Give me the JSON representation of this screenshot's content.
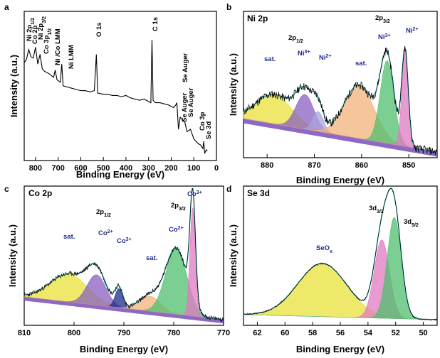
{
  "colors": {
    "yellow": "#e8e23a",
    "purple": "#8a5fc0",
    "lavender": "#a9a3dc",
    "orange": "#f2b27a",
    "green": "#4fbf6e",
    "pink": "#e07ac0",
    "navy": "#1f2a8a",
    "envelope": "#19a7a0",
    "raw": "#000000",
    "baseline_a": "#7a4fb8",
    "baseline_b": "#e8e23a"
  },
  "chart_data": [
    {
      "id": "a",
      "panel_label": "a",
      "type": "line",
      "title": "",
      "xlabel": "Binding Energy (eV)",
      "ylabel": "Intensity (a.u.)",
      "xlim": [
        850,
        0
      ],
      "xticks": [
        "800",
        "700",
        "600",
        "500",
        "400",
        "300",
        "200",
        "100",
        "0"
      ],
      "x_reversed": true,
      "annotations": [
        "Ni 2p1/2",
        "Co 2p",
        "Ni 2p3/2",
        "Co 3p1/2",
        "Ni /Co LMM",
        "Ni LMM",
        "O 1s",
        "C 1s",
        "Se Auger",
        "Se Auger",
        "Se Auger",
        "Co 3p",
        "Se 3d"
      ],
      "series": [
        {
          "values": [
            [
              850,
              0.75
            ],
            [
              840,
              0.78
            ],
            [
              830,
              0.86
            ],
            [
              820,
              0.8
            ],
            [
              810,
              0.79
            ],
            [
              800,
              0.88
            ],
            [
              790,
              0.74
            ],
            [
              780,
              0.82
            ],
            [
              770,
              0.7
            ],
            [
              760,
              0.68
            ],
            [
              740,
              0.66
            ],
            [
              720,
              0.63
            ],
            [
              713,
              0.69
            ],
            [
              705,
              0.61
            ],
            [
              690,
              0.59
            ],
            [
              684,
              0.74
            ],
            [
              678,
              0.56
            ],
            [
              660,
              0.55
            ],
            [
              640,
              0.54
            ],
            [
              620,
              0.53
            ],
            [
              600,
              0.52
            ],
            [
              580,
              0.52
            ],
            [
              560,
              0.51
            ],
            [
              540,
              0.52
            ],
            [
              531,
              0.82
            ],
            [
              525,
              0.5
            ],
            [
              500,
              0.49
            ],
            [
              480,
              0.49
            ],
            [
              460,
              0.48
            ],
            [
              440,
              0.48
            ],
            [
              420,
              0.47
            ],
            [
              400,
              0.48
            ],
            [
              380,
              0.46
            ],
            [
              360,
              0.45
            ],
            [
              340,
              0.44
            ],
            [
              320,
              0.45
            ],
            [
              300,
              0.43
            ],
            [
              290,
              0.42
            ],
            [
              285,
              0.94
            ],
            [
              280,
              0.44
            ],
            [
              270,
              0.42
            ],
            [
              250,
              0.42
            ],
            [
              230,
              0.41
            ],
            [
              210,
              0.4
            ],
            [
              190,
              0.38
            ],
            [
              180,
              0.4
            ],
            [
              175,
              0.42
            ],
            [
              168,
              0.2
            ],
            [
              160,
              0.3
            ],
            [
              150,
              0.28
            ],
            [
              140,
              0.26
            ],
            [
              130,
              0.18
            ],
            [
              115,
              0.2
            ],
            [
              100,
              0.12
            ],
            [
              90,
              0.1
            ],
            [
              80,
              0.08
            ],
            [
              70,
              0.07
            ],
            [
              60,
              0.04
            ],
            [
              56,
              0.1
            ],
            [
              52,
              0.0
            ],
            [
              45,
              0.03
            ],
            [
              40,
              0.02
            ]
          ]
        }
      ]
    },
    {
      "id": "b",
      "panel_label": "b",
      "title": "Ni 2p",
      "type": "line",
      "xlabel": "Binding Energy (eV)",
      "ylabel": "Intensity (a.u.)",
      "xlim": [
        885,
        844
      ],
      "xticks": [
        "880",
        "870",
        "860",
        "850"
      ],
      "x_reversed": true,
      "annotations": [
        "2p1/2",
        "2p3/2",
        "sat.",
        "Ni3+",
        "Ni2+",
        "sat.",
        "Ni3+",
        "Ni2+"
      ],
      "series": [
        {
          "name": "sat. (880)",
          "color": "yellow",
          "center": 878.5,
          "height": 0.22,
          "fwhm": 9.0
        },
        {
          "name": "Ni3+ (2p1/2)",
          "color": "purple",
          "center": 872.0,
          "height": 0.26,
          "fwhm": 4.5
        },
        {
          "name": "Ni2+ (2p1/2)",
          "color": "lavender",
          "center": 869.2,
          "height": 0.15,
          "fwhm": 2.6
        },
        {
          "name": "sat. (861)",
          "color": "orange",
          "center": 860.5,
          "height": 0.4,
          "fwhm": 7.5
        },
        {
          "name": "Ni3+ (2p3/2)",
          "color": "green",
          "center": 854.6,
          "height": 0.62,
          "fwhm": 3.4
        },
        {
          "name": "Ni2+ (2p3/2)",
          "color": "pink",
          "center": 850.8,
          "height": 0.72,
          "fwhm": 1.6
        }
      ],
      "baseline": [
        [
          885,
          0.25
        ],
        [
          844,
          0.0
        ]
      ]
    },
    {
      "id": "c",
      "panel_label": "c",
      "title": "Co 2p",
      "type": "line",
      "xlabel": "Binding Energy (eV)",
      "ylabel": "Intensity (a.u.)",
      "xlim": [
        810,
        770
      ],
      "xticks": [
        "810",
        "800",
        "790",
        "780",
        "770"
      ],
      "x_reversed": true,
      "annotations": [
        "2p1/2",
        "2p3/2",
        "sat.",
        "Co2+",
        "Co3+",
        "sat.",
        "Co2+",
        "Co3+"
      ],
      "series": [
        {
          "name": "sat. (801)",
          "color": "yellow",
          "center": 801.0,
          "height": 0.22,
          "fwhm": 9.0
        },
        {
          "name": "Co2+ (2p1/2)",
          "color": "purple",
          "center": 795.5,
          "height": 0.24,
          "fwhm": 4.5
        },
        {
          "name": "Co3+ (2p1/2)",
          "color": "navy",
          "center": 791.0,
          "height": 0.15,
          "fwhm": 1.8
        },
        {
          "name": "sat. (785)",
          "color": "orange",
          "center": 784.8,
          "height": 0.12,
          "fwhm": 5.0
        },
        {
          "name": "Co2+ (2p3/2)",
          "color": "green",
          "center": 779.5,
          "height": 0.52,
          "fwhm": 5.0
        },
        {
          "name": "Co3+ (2p3/2)",
          "color": "pink",
          "center": 776.2,
          "height": 0.86,
          "fwhm": 1.3
        }
      ],
      "baseline": [
        [
          810,
          0.18
        ],
        [
          770,
          0.0
        ]
      ]
    },
    {
      "id": "d",
      "panel_label": "d",
      "title": "Se 3d",
      "type": "line",
      "xlabel": "Binding Energy (eV)",
      "ylabel": "Intensity (a.u.)",
      "xlim": [
        63,
        49
      ],
      "xticks": [
        "62",
        "60",
        "58",
        "56",
        "54",
        "52",
        "50"
      ],
      "x_reversed": true,
      "annotations": [
        "SeOx",
        "3d3/2",
        "3d5/2"
      ],
      "series": [
        {
          "name": "SeOx",
          "color": "yellow",
          "center": 57.3,
          "height": 0.42,
          "fwhm": 4.2
        },
        {
          "name": "3d3/2",
          "color": "pink",
          "center": 53.0,
          "height": 0.62,
          "fwhm": 1.3
        },
        {
          "name": "3d5/2",
          "color": "green",
          "center": 52.1,
          "height": 0.8,
          "fwhm": 1.2
        }
      ],
      "baseline": [
        [
          63,
          0.04
        ],
        [
          49,
          0.0
        ]
      ]
    }
  ],
  "panels": {
    "a": {
      "label": "a",
      "xlabel": "Binding Energy (eV)",
      "ylabel": "Intensity (a.u.)",
      "ticks": [
        "800",
        "700",
        "600",
        "500",
        "400",
        "300",
        "200",
        "100",
        "0"
      ],
      "ann": {
        "ni2p12": "Ni 2p",
        "ni2p12_sub": "1/2",
        "co2p": "Co 2p",
        "ni2p32": "Ni 2p",
        "ni2p32_sub": "3/2",
        "co3p12": "Co 3p",
        "co3p12_sub": "1/2",
        "nicolmm": "Ni /Co LMM",
        "nilmm": "Ni LMM",
        "o1s": "O 1s",
        "c1s": "C 1s",
        "seauger1": "Se Auger",
        "seauger2": "Se Auger",
        "seauger3": "Se Auger",
        "co3p": "Co 3p",
        "se3d": "Se 3d"
      }
    },
    "b": {
      "label": "b",
      "title": "Ni 2p",
      "xlabel": "Binding Energy (eV)",
      "ylabel": "Intensity (a.u.)",
      "ticks": [
        "880",
        "870",
        "860",
        "850"
      ],
      "ann": {
        "p12": "2p",
        "p12_sub": "1/2",
        "p32": "2p",
        "p32_sub": "3/2",
        "sat1": "sat.",
        "ni3a": "Ni",
        "ni3a_sup": "3+",
        "ni2a": "Ni",
        "ni2a_sup": "2+",
        "sat2": "sat.",
        "ni3b": "Ni",
        "ni3b_sup": "3+",
        "ni2b": "Ni",
        "ni2b_sup": "2+"
      }
    },
    "c": {
      "label": "c",
      "title": "Co 2p",
      "xlabel": "Binding Energy (eV)",
      "ylabel": "Intensity (a.u.)",
      "ticks": [
        "810",
        "800",
        "790",
        "780",
        "770"
      ],
      "ann": {
        "p12": "2p",
        "p12_sub": "1/2",
        "p32": "2p",
        "p32_sub": "3/2",
        "sat1": "sat.",
        "co2a": "Co",
        "co2a_sup": "2+",
        "co3a": "Co",
        "co3a_sup": "3+",
        "sat2": "sat.",
        "co2b": "Co",
        "co2b_sup": "2+",
        "co3b": "Co",
        "co3b_sup": "3+"
      }
    },
    "d": {
      "label": "d",
      "title": "Se 3d",
      "xlabel": "Binding Energy (eV)",
      "ylabel": "Intensity (a.u.)",
      "ticks": [
        "62",
        "60",
        "58",
        "56",
        "54",
        "52",
        "50"
      ],
      "ann": {
        "seox": "SeO",
        "seox_sub": "x",
        "d32": "3d",
        "d32_sub": "3/2",
        "d52": "3d",
        "d52_sub": "5/2"
      }
    }
  }
}
